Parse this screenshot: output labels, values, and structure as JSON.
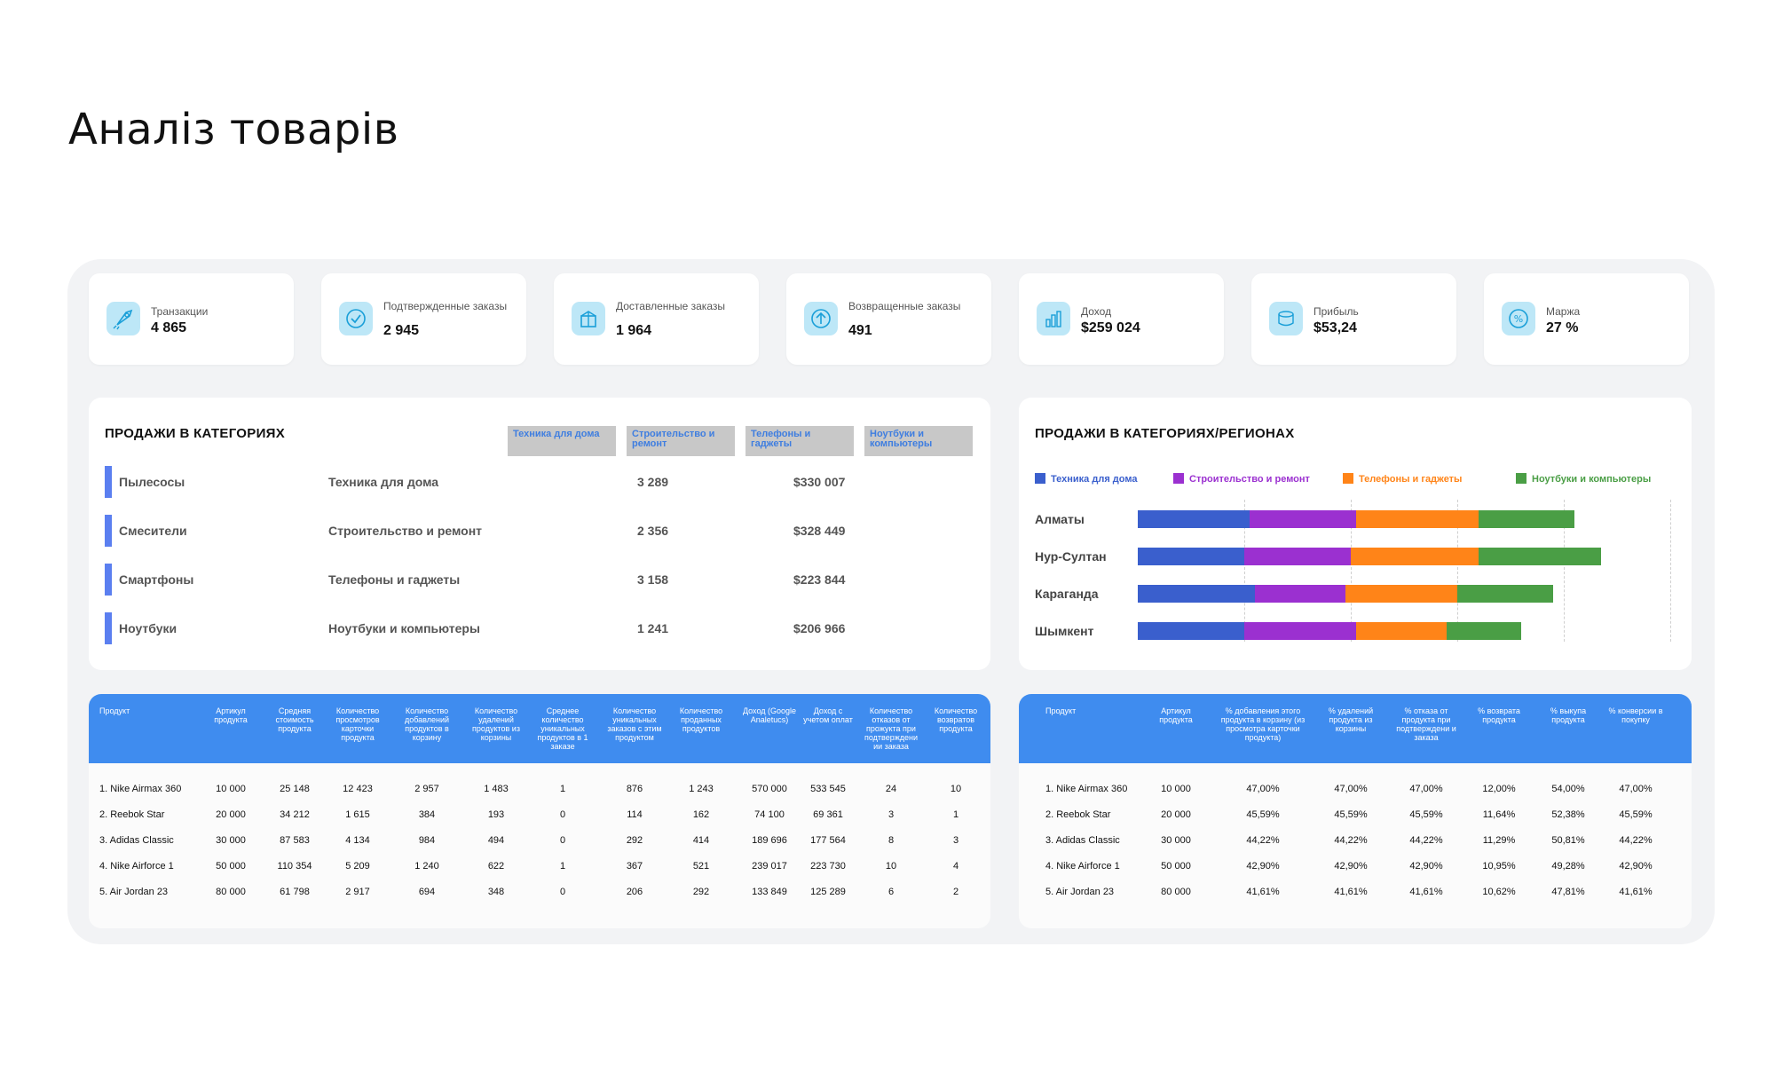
{
  "page_title": "Аналіз товарів",
  "kpis": [
    {
      "label": "Транзакции",
      "value": "4 865",
      "icon": "rocket-icon"
    },
    {
      "label": "Подтвержденные заказы",
      "value": "2 945",
      "icon": "check-badge-icon"
    },
    {
      "label": "Доставленные заказы",
      "value": "1 964",
      "icon": "delivery-box-icon"
    },
    {
      "label": "Возвращенные заказы",
      "value": "491",
      "icon": "return-icon"
    },
    {
      "label": "Доход",
      "value": "$259 024",
      "icon": "income-chart-icon"
    },
    {
      "label": "Прибыль",
      "value": "$53,24",
      "icon": "profit-coins-icon"
    },
    {
      "label": "Маржа",
      "value": "27 %",
      "icon": "margin-icon"
    }
  ],
  "sales_categories": {
    "title": "ПРОДАЖИ В КАТЕГОРИЯХ",
    "header_boxes": [
      "Техника для дома",
      "Строительство и ремонт",
      "Телефоны и гаджеты",
      "Ноутбуки и компьютеры"
    ],
    "rows": [
      {
        "product": "Пылесосы",
        "category": "Техника для дома",
        "qty": "3 289",
        "revenue": "$330 007"
      },
      {
        "product": "Смесители",
        "category": "Строительство и ремонт",
        "qty": "2 356",
        "revenue": "$328 449"
      },
      {
        "product": "Смартфоны",
        "category": "Телефоны и гаджеты",
        "qty": "3 158",
        "revenue": "$223 844"
      },
      {
        "product": "Ноутбуки",
        "category": "Ноутбуки и компьютеры",
        "qty": "1 241",
        "revenue": "$206 966"
      }
    ],
    "accent_color": "#5b7ff0"
  },
  "chart_data": {
    "type": "bar",
    "orientation": "horizontal",
    "stacked": true,
    "title": "ПРОДАЖИ В КАТЕГОРИЯХ/РЕГИОНАХ",
    "categories": [
      "Алматы",
      "Нур-Султан",
      "Караганда",
      "Шымкент"
    ],
    "series": [
      {
        "name": "Техника для дома",
        "color": "#3a5fcd",
        "values": [
          21,
          20,
          22,
          20
        ]
      },
      {
        "name": "Строительство и ремонт",
        "color": "#9b30d0",
        "values": [
          20,
          20,
          17,
          21
        ]
      },
      {
        "name": "Телефоны и гаджеты",
        "color": "#ff8418",
        "values": [
          23,
          24,
          21,
          17
        ]
      },
      {
        "name": "Ноутбуки и компьютеры",
        "color": "#4a9e45",
        "values": [
          18,
          23,
          18,
          14
        ]
      }
    ],
    "xlim": [
      0,
      100
    ],
    "grid": true,
    "legend_position": "top"
  },
  "products_table": {
    "headers": [
      "Продукт",
      "Артикул продукта",
      "Средняя стоимость продукта",
      "Количество просмотров карточки продукта",
      "Количество добавлений продуктов в корзину",
      "Количество удалений продуктов из корзины",
      "Среднее количество уникальных продуктов в 1 заказе",
      "Количество уникальных заказов с этим продуктом",
      "Количество проданных продуктов",
      "Доход (Google Analetucs)",
      "Доход с учетом оплат",
      "Количество отказов от прожукта при подтверждени ии заказа",
      "Количество возвратов продукта"
    ],
    "rows": [
      [
        "1. Nike Airmax 360",
        "10 000",
        "25 148",
        "12 423",
        "2 957",
        "1 483",
        "1",
        "876",
        "1 243",
        "570 000",
        "533 545",
        "24",
        "10"
      ],
      [
        "2. Reebok Star",
        "20 000",
        "34 212",
        "1 615",
        "384",
        "193",
        "0",
        "114",
        "162",
        "74 100",
        "69 361",
        "3",
        "1"
      ],
      [
        "3. Adidas Classic",
        "30 000",
        "87 583",
        "4 134",
        "984",
        "494",
        "0",
        "292",
        "414",
        "189 696",
        "177 564",
        "8",
        "3"
      ],
      [
        "4. Nike Airforce 1",
        "50 000",
        "110 354",
        "5 209",
        "1 240",
        "622",
        "1",
        "367",
        "521",
        "239 017",
        "223 730",
        "10",
        "4"
      ],
      [
        "5. Air Jordan 23",
        "80 000",
        "61 798",
        "2 917",
        "694",
        "348",
        "0",
        "206",
        "292",
        "133 849",
        "125 289",
        "6",
        "2"
      ]
    ]
  },
  "conversion_table": {
    "headers": [
      "Продукт",
      "Артикул продукта",
      "% добавления этого продукта в корзину (из просмотра карточки продукта)",
      "% удалений продукта из корзины",
      "% отказа от продукта при подтверждени и заказа",
      "% возврата продукта",
      "% выкупа продукта",
      "% конверсии в покупку"
    ],
    "rows": [
      [
        "1. Nike Airmax 360",
        "10 000",
        "47,00%",
        "47,00%",
        "47,00%",
        "12,00%",
        "54,00%",
        "47,00%"
      ],
      [
        "2. Reebok Star",
        "20 000",
        "45,59%",
        "45,59%",
        "45,59%",
        "11,64%",
        "52,38%",
        "45,59%"
      ],
      [
        "3. Adidas Classic",
        "30 000",
        "44,22%",
        "44,22%",
        "44,22%",
        "11,29%",
        "50,81%",
        "44,22%"
      ],
      [
        "4. Nike Airforce 1",
        "50 000",
        "42,90%",
        "42,90%",
        "42,90%",
        "10,95%",
        "49,28%",
        "42,90%"
      ],
      [
        "5. Air Jordan 23",
        "80 000",
        "41,61%",
        "41,61%",
        "41,61%",
        "10,62%",
        "47,81%",
        "41,61%"
      ]
    ]
  },
  "colors": {
    "table_header": "#3f8cef",
    "panel_bg": "#f2f3f5",
    "icon_bg": "#bde7f7"
  }
}
